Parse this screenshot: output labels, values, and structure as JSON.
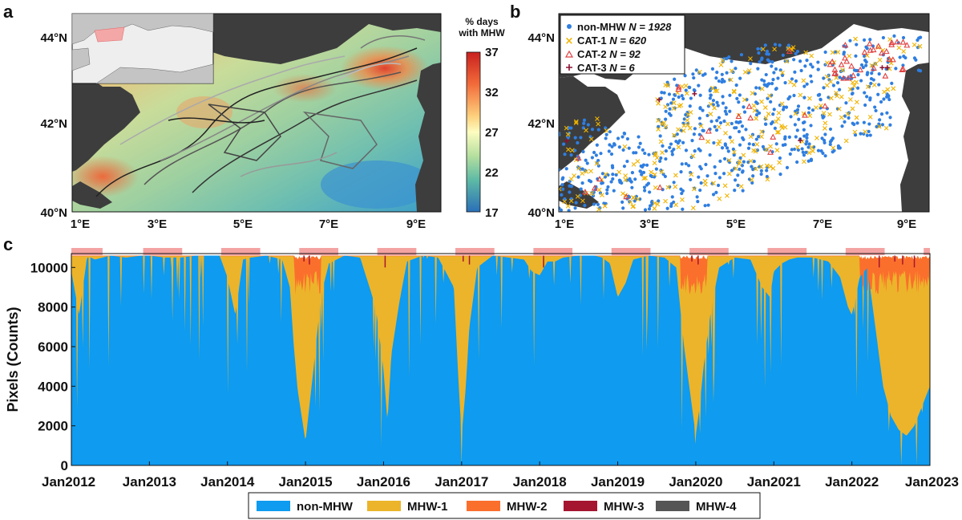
{
  "chart_data": [
    {
      "panel": "a",
      "type": "heatmap",
      "title": "% days with MHW",
      "colorbar": {
        "label_line1": "% days",
        "label_line2": "with MHW",
        "ticks": [
          37,
          32,
          27,
          22,
          17
        ],
        "range": [
          17,
          37
        ]
      },
      "x_ticks": [
        "1°E",
        "3°E",
        "5°E",
        "7°E",
        "9°E"
      ],
      "y_ticks": [
        "44°N",
        "42°N",
        "40°N"
      ],
      "xlim": [
        1,
        9.5
      ],
      "ylim": [
        40,
        44.5
      ]
    },
    {
      "panel": "b",
      "type": "scatter",
      "x_ticks": [
        "1°E",
        "3°E",
        "5°E",
        "7°E",
        "9°E"
      ],
      "y_ticks": [
        "44°N",
        "42°N",
        "40°N"
      ],
      "xlim": [
        1,
        9.5
      ],
      "ylim": [
        40,
        44.5
      ],
      "series": [
        {
          "name": "non-MHW",
          "n_text": "N = 1928",
          "n": 1928,
          "color": "#2f7ee0",
          "marker": "•"
        },
        {
          "name": "CAT-1",
          "n_text": "N = 620",
          "n": 620,
          "color": "#f0b400",
          "marker": "×"
        },
        {
          "name": "CAT-2",
          "n_text": "N = 92",
          "n": 92,
          "color": "#e04040",
          "marker": "△"
        },
        {
          "name": "CAT-3",
          "n_text": "N = 6",
          "n": 6,
          "color": "#8b1030",
          "marker": "+"
        }
      ]
    },
    {
      "panel": "c",
      "type": "area",
      "ylabel": "Pixels (Counts)",
      "y_ticks": [
        "10000",
        "8000",
        "6000",
        "4000",
        "2000",
        "0"
      ],
      "ylim": [
        0,
        10700
      ],
      "x_ticks": [
        "Jan2012",
        "Jan2013",
        "Jan2014",
        "Jan2015",
        "Jan2016",
        "Jan2017",
        "Jan2018",
        "Jan2019",
        "Jan2020",
        "Jan2021",
        "Jan2022",
        "Jan2023"
      ],
      "xlim": [
        2012.0,
        2023.0
      ],
      "summer_bars": [
        [
          2012.0,
          2012.4
        ],
        [
          2012.92,
          2013.42
        ],
        [
          2013.92,
          2014.42
        ],
        [
          2014.92,
          2015.42
        ],
        [
          2015.92,
          2016.42
        ],
        [
          2016.92,
          2017.42
        ],
        [
          2017.92,
          2018.42
        ],
        [
          2018.92,
          2019.42
        ],
        [
          2019.92,
          2020.42
        ],
        [
          2020.92,
          2021.42
        ],
        [
          2021.92,
          2022.42
        ],
        [
          2022.92,
          2023.0
        ]
      ],
      "legend": [
        {
          "name": "non-MHW",
          "color": "#0e9bf0"
        },
        {
          "name": "MHW-1",
          "color": "#ecb42a"
        },
        {
          "name": "MHW-2",
          "color": "#fb6f2d"
        },
        {
          "name": "MHW-3",
          "color": "#a5152f"
        },
        {
          "name": "MHW-4",
          "color": "#555555"
        }
      ],
      "series": [
        {
          "name": "non-MHW",
          "x": [
            2012.0,
            2012.1,
            2012.2,
            2012.25,
            2012.3,
            2012.5,
            2012.7,
            2012.9,
            2013.0,
            2013.2,
            2013.4,
            2013.6,
            2013.9,
            2014.0,
            2014.1,
            2014.2,
            2014.3,
            2014.5,
            2014.7,
            2014.8,
            2014.85,
            2014.9,
            2014.95,
            2015.0,
            2015.1,
            2015.2,
            2015.3,
            2015.5,
            2015.7,
            2015.9,
            2016.0,
            2016.05,
            2016.1,
            2016.2,
            2016.3,
            2016.5,
            2016.7,
            2016.9,
            2016.95,
            2017.0,
            2017.05,
            2017.1,
            2017.2,
            2017.4,
            2017.6,
            2017.8,
            2017.9,
            2018.0,
            2018.1,
            2018.2,
            2018.3,
            2018.5,
            2018.7,
            2018.8,
            2018.9,
            2019.0,
            2019.1,
            2019.2,
            2019.4,
            2019.6,
            2019.75,
            2019.85,
            2019.95,
            2020.0,
            2020.05,
            2020.1,
            2020.2,
            2020.3,
            2020.5,
            2020.7,
            2020.85,
            2020.95,
            2021.0,
            2021.1,
            2021.2,
            2021.3,
            2021.5,
            2021.7,
            2021.85,
            2021.95,
            2022.0,
            2022.1,
            2022.2,
            2022.3,
            2022.4,
            2022.5,
            2022.6,
            2022.7,
            2022.8,
            2022.9,
            2023.0
          ],
          "y": [
            9800,
            7600,
            10500,
            10500,
            10400,
            10600,
            10500,
            10600,
            10600,
            10500,
            10500,
            10600,
            10600,
            9500,
            7600,
            10400,
            10500,
            10600,
            10400,
            9000,
            6000,
            3800,
            2500,
            1200,
            4800,
            8600,
            10200,
            10600,
            10500,
            8000,
            4800,
            2200,
            5600,
            8200,
            10300,
            10600,
            10500,
            9000,
            5000,
            1500,
            3800,
            7000,
            10000,
            10600,
            10500,
            10400,
            9800,
            9600,
            10300,
            10300,
            10500,
            10600,
            10600,
            10500,
            10200,
            8500,
            9200,
            10400,
            10600,
            10500,
            10000,
            6000,
            3000,
            1500,
            3000,
            5000,
            8000,
            10000,
            10500,
            10400,
            9000,
            8500,
            9800,
            10200,
            10400,
            10500,
            10500,
            10300,
            9500,
            8000,
            7600,
            9500,
            10000,
            7000,
            4000,
            2500,
            1800,
            1500,
            2000,
            3000,
            4000
          ]
        },
        {
          "name": "MHW-1",
          "note": "yellow band fills to near 10600 except slightly lower during strong events"
        },
        {
          "name": "MHW-2",
          "note": "thin orange cap during 2014-2015, 2019-2020, 2022-2023"
        },
        {
          "name": "MHW-3",
          "note": "rare dark-red spikes at top"
        },
        {
          "name": "MHW-4",
          "note": "none visible"
        }
      ]
    }
  ]
}
